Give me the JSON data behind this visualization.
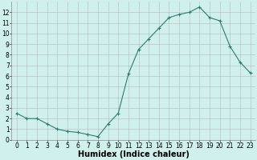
{
  "x": [
    0,
    1,
    2,
    3,
    4,
    5,
    6,
    7,
    8,
    9,
    10,
    11,
    12,
    13,
    14,
    15,
    16,
    17,
    18,
    19,
    20,
    21,
    22,
    23
  ],
  "y": [
    2.5,
    2.0,
    2.0,
    1.5,
    1.0,
    0.8,
    0.7,
    0.5,
    0.3,
    1.5,
    2.5,
    6.2,
    8.5,
    9.5,
    10.5,
    11.5,
    11.8,
    12.0,
    12.5,
    11.5,
    11.2,
    8.8,
    7.3,
    6.3
  ],
  "xlabel": "Humidex (Indice chaleur)",
  "line_color": "#2d7d6e",
  "marker": "+",
  "bg_color": "#cff0ec",
  "grid_color": "#b8b8b8",
  "xlim": [
    -0.5,
    23.5
  ],
  "ylim": [
    0,
    13
  ],
  "yticks": [
    0,
    1,
    2,
    3,
    4,
    5,
    6,
    7,
    8,
    9,
    10,
    11,
    12
  ],
  "xticks": [
    0,
    1,
    2,
    3,
    4,
    5,
    6,
    7,
    8,
    9,
    10,
    11,
    12,
    13,
    14,
    15,
    16,
    17,
    18,
    19,
    20,
    21,
    22,
    23
  ],
  "tick_fontsize": 5.5,
  "xlabel_fontsize": 7,
  "linewidth": 0.8,
  "markersize": 3.5,
  "markeredgewidth": 0.8
}
